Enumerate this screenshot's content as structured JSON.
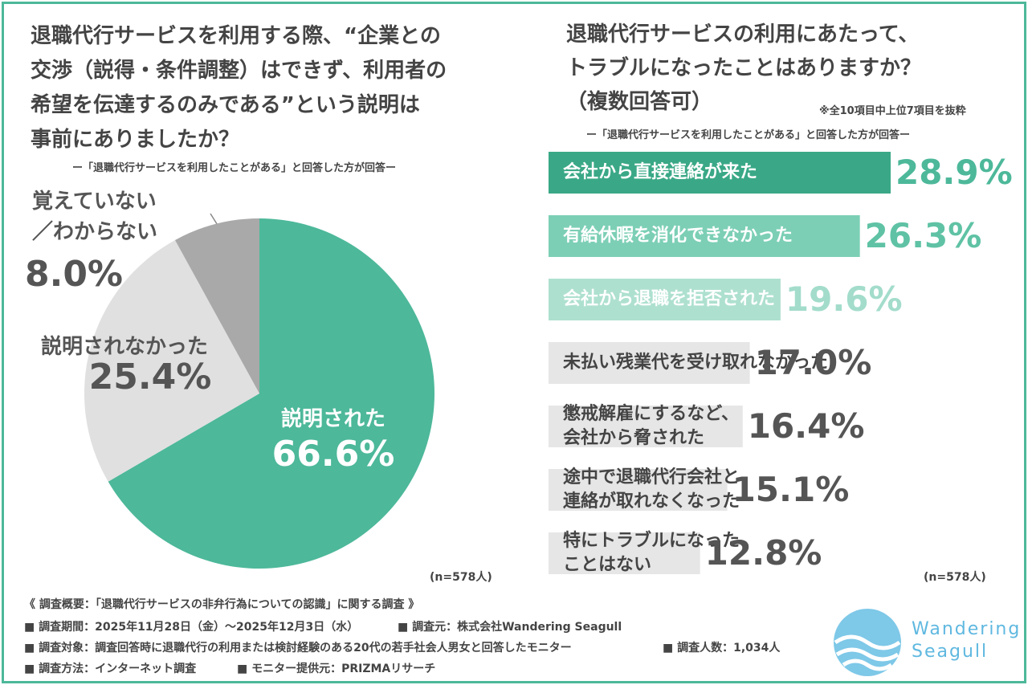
{
  "chart_data": [
    {
      "type": "pie",
      "title": "退職代行サービスを利用する際、“企業との\n交渉（説得・条件調整）はできず、利用者の\n希望を伝達するのみである”という説明は\n事前にありましたか？",
      "subtitle": "ー「退職代行サービスを利用したことがある」と回答した方が回答ー",
      "categories": [
        "説明された",
        "説明されなかった",
        "覚えていない\n／わからない"
      ],
      "values": [
        66.6,
        25.4,
        8.0
      ],
      "value_labels": [
        "66.6%",
        "25.4%",
        "8.0%"
      ],
      "colors": [
        "#4db89a",
        "#e0e0e0",
        "#a9a9a9"
      ],
      "label_colors": [
        "#ffffff",
        "#555555",
        "#555555"
      ],
      "note": "(n=578人)"
    },
    {
      "type": "hbar",
      "title": "退職代行サービスの利用にあたって、\nトラブルになったことはありますか？\n（複数回答可）",
      "annotation": "※全10項目中上位7項目を抜粋",
      "subtitle": "ー「退職代行サービスを利用したことがある」と回答した方が回答ー",
      "categories": [
        "会社から直接連絡が来た",
        "有給休暇を消化できなかった",
        "会社から退職を拒否された",
        "未払い残業代を受け取れなかった",
        "懲戒解雇にするなど、\n会社から脅された",
        "途中で退職代行会社と\n連絡が取れなくなった",
        "特にトラブルになった\nことはない"
      ],
      "values": [
        28.9,
        26.3,
        19.6,
        17.0,
        16.4,
        15.1,
        12.8
      ],
      "value_labels": [
        "28.9%",
        "26.3%",
        "19.6%",
        "17.0%",
        "16.4%",
        "15.1%",
        "12.8%"
      ],
      "colors": [
        "#3aa886",
        "#7ccfb5",
        "#aee0d0",
        "#e6e6e6",
        "#e6e6e6",
        "#e6e6e6",
        "#e6e6e6"
      ],
      "text_colors": [
        "#ffffff",
        "#ffffff",
        "#ffffff",
        "#444444",
        "#444444",
        "#444444",
        "#444444"
      ],
      "value_label_colors": [
        "#4db89a",
        "#5fc2a4",
        "#a3dccb",
        "#555555",
        "#555555",
        "#555555",
        "#555555"
      ],
      "note": "(n=578人)"
    }
  ],
  "footer": {
    "heading": "《 調査概要：「退職代行サービスの非弁行為についての認識」に関する調査 》",
    "items": [
      "■ 調査期間：2025年11月28日（金）～2025年12月3日（水）",
      "■ 調査元：株式会社Wandering Seagull",
      "■ 調査対象：調査回答時に退職代行の利用または検討経験のある20代の若手社会人男女と回答したモニター",
      "■ 調査人数：1,034人",
      "■ 調査方法：インターネット調査",
      "■ モニター提供元：PRIZMAリサーチ"
    ],
    "logo": "Wandering\nSeagull"
  }
}
